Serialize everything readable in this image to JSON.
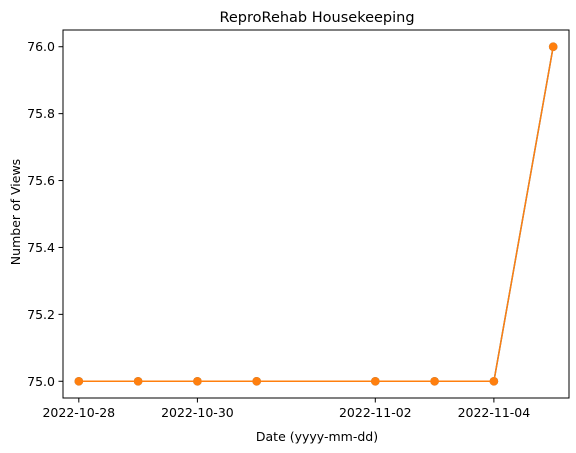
{
  "chart_data": {
    "type": "line",
    "title": "ReproRehab Housekeeping",
    "xlabel": "Date (yyyy-mm-dd)",
    "ylabel": "Number of Views",
    "x": [
      "2022-10-28",
      "2022-10-29",
      "2022-10-30",
      "2022-10-31",
      "2022-11-02",
      "2022-11-03",
      "2022-11-04",
      "2022-11-05"
    ],
    "series": [
      {
        "color": "#1f77b4",
        "values": [
          75,
          75,
          75,
          75,
          75,
          75,
          75,
          76
        ]
      },
      {
        "color": "#ff7f0e",
        "values": [
          75,
          75,
          75,
          75,
          75,
          75,
          75,
          76
        ]
      }
    ],
    "xticks": [
      "2022-10-28",
      "2022-10-30",
      "2022-11-02",
      "2022-11-04"
    ],
    "yticks": [
      "75.0",
      "75.2",
      "75.4",
      "75.6",
      "75.8",
      "76.0"
    ],
    "xlim": [
      "2022-10-27T17:36",
      "2022-11-05T06:24"
    ],
    "ylim": [
      74.95,
      76.05
    ],
    "grid": false
  }
}
